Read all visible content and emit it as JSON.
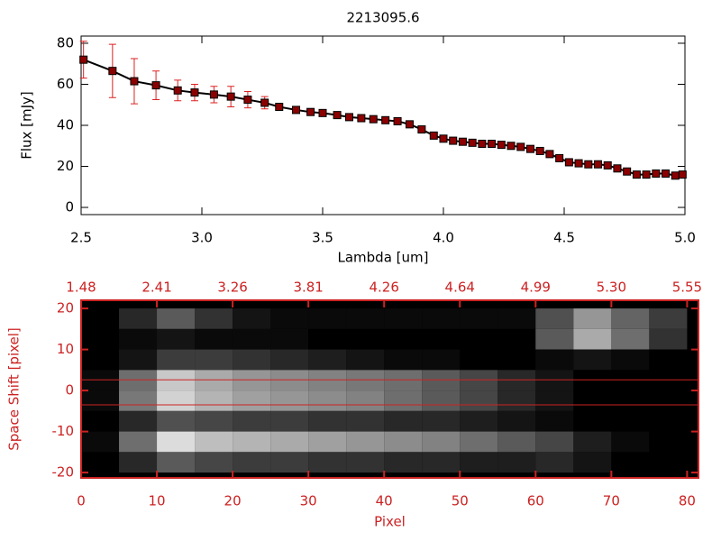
{
  "chart_data": [
    {
      "type": "line",
      "title": "2213095.6",
      "xlabel": "Lambda [um]",
      "ylabel": "Flux [mJy]",
      "xlim": [
        2.5,
        5.0
      ],
      "ylim": [
        -3.5,
        83.5
      ],
      "xticks": [
        2.5,
        {
          "value": 3,
          "label": "3.0"
        },
        3.5,
        {
          "value": 4,
          "label": "4.0"
        },
        4.5,
        {
          "value": 5,
          "label": "5.0"
        }
      ],
      "yticks": [
        0,
        20,
        40,
        60,
        80
      ],
      "x": [
        2.51,
        2.63,
        2.72,
        2.81,
        2.9,
        2.97,
        3.05,
        3.12,
        3.19,
        3.26,
        3.32,
        3.39,
        3.45,
        3.5,
        3.56,
        3.61,
        3.66,
        3.71,
        3.76,
        3.81,
        3.86,
        3.91,
        3.96,
        4.0,
        4.04,
        4.08,
        4.12,
        4.16,
        4.2,
        4.24,
        4.28,
        4.32,
        4.36,
        4.4,
        4.44,
        4.48,
        4.52,
        4.56,
        4.6,
        4.64,
        4.68,
        4.72,
        4.76,
        4.8,
        4.84,
        4.88,
        4.92,
        4.96,
        4.99
      ],
      "values": [
        72,
        66.5,
        61.5,
        59.5,
        57,
        56,
        55,
        54,
        52.5,
        51,
        49,
        47.5,
        46.5,
        46,
        45,
        44,
        43.5,
        43,
        42.5,
        42,
        40.5,
        38,
        35,
        33.5,
        32.5,
        32,
        31.5,
        31,
        31,
        30.5,
        30,
        29.5,
        28.5,
        27.5,
        26,
        24,
        22,
        21.5,
        21,
        21,
        20.5,
        19,
        17.5,
        16,
        16,
        16.5,
        16.5,
        15.5,
        16
      ],
      "errors": [
        9,
        13,
        11,
        7,
        5,
        4,
        4,
        5,
        4,
        3,
        1.5,
        1.5,
        1,
        1,
        1,
        1,
        1,
        1,
        1,
        1,
        1,
        1,
        1,
        1,
        1,
        1,
        1,
        1,
        1,
        1,
        1,
        1,
        1,
        1,
        1,
        1,
        1,
        1,
        1,
        1,
        1,
        1,
        1,
        1,
        1,
        1,
        1,
        1,
        1
      ],
      "line_color": "#000000",
      "marker_color": "#8b0000",
      "error_color": "#dd2020"
    },
    {
      "type": "heatmap",
      "xlabel": "Pixel",
      "ylabel": "Space Shift [pixel]",
      "axis_color": "#cc2222",
      "xlim": [
        0,
        81.5
      ],
      "ylim": [
        -21.3,
        22
      ],
      "xticks": [
        0,
        10,
        20,
        30,
        40,
        50,
        60,
        70,
        80
      ],
      "x2ticklabels": [
        "1.48",
        "2.41",
        "3.26",
        "3.81",
        "4.26",
        "4.64",
        "4.99",
        "5.30",
        "5.55"
      ],
      "yticks": [
        -20,
        -10,
        0,
        10,
        20
      ],
      "hlines": [
        2.6,
        -3.5
      ],
      "x": [
        2.5,
        7.5,
        12.5,
        17.5,
        22.5,
        27.5,
        32.5,
        37.5,
        42.5,
        47.5,
        52.5,
        57.5,
        62.5,
        67.5,
        72.5,
        77.5
      ],
      "y": [
        17.5,
        12.5,
        7.5,
        2.5,
        -2.5,
        -7.5,
        -12.5,
        -17.5
      ],
      "z": [
        [
          0,
          40,
          90,
          50,
          20,
          10,
          10,
          10,
          10,
          10,
          10,
          10,
          80,
          150,
          100,
          60
        ],
        [
          0,
          10,
          20,
          10,
          10,
          10,
          0,
          0,
          0,
          0,
          0,
          0,
          90,
          170,
          110,
          50
        ],
        [
          0,
          20,
          60,
          60,
          50,
          40,
          30,
          20,
          10,
          10,
          0,
          0,
          10,
          20,
          10,
          0
        ],
        [
          10,
          110,
          200,
          170,
          150,
          140,
          130,
          120,
          110,
          90,
          70,
          40,
          20,
          0,
          0,
          0
        ],
        [
          10,
          120,
          210,
          180,
          160,
          150,
          140,
          130,
          110,
          90,
          70,
          40,
          20,
          0,
          0,
          0
        ],
        [
          0,
          40,
          80,
          70,
          60,
          60,
          50,
          50,
          40,
          40,
          30,
          20,
          10,
          0,
          0,
          0
        ],
        [
          10,
          110,
          220,
          190,
          180,
          170,
          160,
          150,
          140,
          130,
          110,
          90,
          70,
          30,
          10,
          0
        ],
        [
          0,
          40,
          90,
          70,
          60,
          60,
          50,
          50,
          40,
          40,
          30,
          30,
          40,
          20,
          0,
          0
        ]
      ]
    }
  ]
}
